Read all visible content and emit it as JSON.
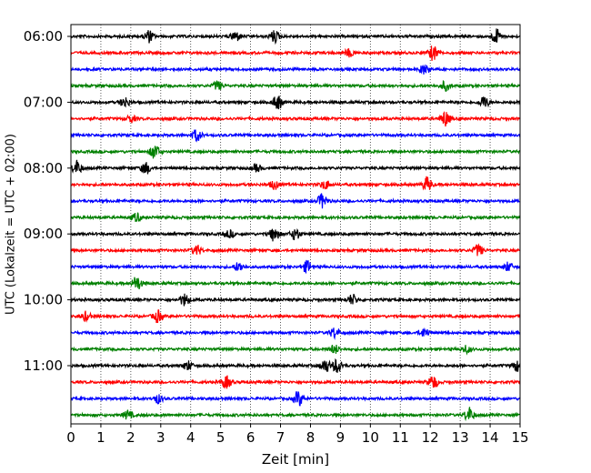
{
  "chart_data": {
    "type": "line",
    "subtype": "helicorder",
    "title": "",
    "xlabel": "Zeit  [min]",
    "ylabel": "UTC (Lokalzeit = UTC + 02:00)",
    "xlim": [
      0,
      15
    ],
    "x_ticks": [
      0,
      1,
      2,
      3,
      4,
      5,
      6,
      7,
      8,
      9,
      10,
      11,
      12,
      13,
      14,
      15
    ],
    "x_tick_labels": [
      "0",
      "1",
      "2",
      "3",
      "4",
      "5",
      "6",
      "7",
      "8",
      "9",
      "10",
      "11",
      "12",
      "13",
      "14",
      "15"
    ],
    "vertical_grid": "dotted at each minute",
    "trace_interval_minutes": 15,
    "trace_start_times": [
      "06:00",
      "06:15",
      "06:30",
      "06:45",
      "07:00",
      "07:15",
      "07:30",
      "07:45",
      "08:00",
      "08:15",
      "08:30",
      "08:45",
      "09:00",
      "09:15",
      "09:30",
      "09:45",
      "10:00",
      "10:15",
      "10:30",
      "10:45",
      "11:00",
      "11:15",
      "11:30",
      "11:45"
    ],
    "y_tick_labels": [
      "06:00",
      "07:00",
      "08:00",
      "09:00",
      "10:00",
      "11:00"
    ],
    "color_cycle": [
      "#000000",
      "#ff0000",
      "#0000ff",
      "#008000"
    ],
    "events": [
      [
        [
          2.6,
          0.8
        ],
        [
          5.5,
          0.7
        ],
        [
          6.8,
          0.8
        ],
        [
          14.2,
          1.0
        ]
      ],
      [
        [
          9.3,
          0.5
        ],
        [
          12.1,
          1.0
        ]
      ],
      [
        [
          11.8,
          0.6
        ]
      ],
      [
        [
          4.9,
          0.6
        ],
        [
          12.5,
          0.6
        ]
      ],
      [
        [
          1.8,
          0.7
        ],
        [
          6.9,
          1.0
        ],
        [
          13.8,
          0.8
        ]
      ],
      [
        [
          12.5,
          1.0
        ],
        [
          2.0,
          0.5
        ]
      ],
      [
        [
          4.2,
          0.8
        ]
      ],
      [
        [
          2.8,
          1.0
        ]
      ],
      [
        [
          0.2,
          1.0
        ],
        [
          2.5,
          0.8
        ],
        [
          6.2,
          0.5
        ]
      ],
      [
        [
          6.8,
          0.6
        ],
        [
          8.5,
          0.6
        ],
        [
          11.9,
          1.0
        ]
      ],
      [
        [
          8.4,
          1.0
        ]
      ],
      [
        [
          2.2,
          0.6
        ]
      ],
      [
        [
          6.8,
          1.0
        ],
        [
          7.5,
          0.8
        ],
        [
          5.3,
          0.5
        ]
      ],
      [
        [
          4.2,
          0.7
        ],
        [
          13.6,
          0.8
        ]
      ],
      [
        [
          5.6,
          0.6
        ],
        [
          7.9,
          0.8
        ],
        [
          14.6,
          0.6
        ]
      ],
      [
        [
          2.2,
          1.0
        ]
      ],
      [
        [
          3.8,
          0.8
        ],
        [
          9.4,
          0.7
        ]
      ],
      [
        [
          0.5,
          0.6
        ],
        [
          2.9,
          0.8
        ]
      ],
      [
        [
          8.8,
          0.7
        ],
        [
          11.8,
          0.6
        ]
      ],
      [
        [
          8.8,
          0.6
        ],
        [
          13.2,
          0.5
        ]
      ],
      [
        [
          3.9,
          0.6
        ],
        [
          8.5,
          0.9
        ],
        [
          8.9,
          1.0
        ],
        [
          14.9,
          0.7
        ]
      ],
      [
        [
          5.2,
          0.8
        ],
        [
          12.1,
          0.9
        ]
      ],
      [
        [
          2.9,
          0.6
        ],
        [
          7.6,
          1.0
        ]
      ],
      [
        [
          1.9,
          0.6
        ],
        [
          13.3,
          1.0
        ]
      ]
    ]
  }
}
